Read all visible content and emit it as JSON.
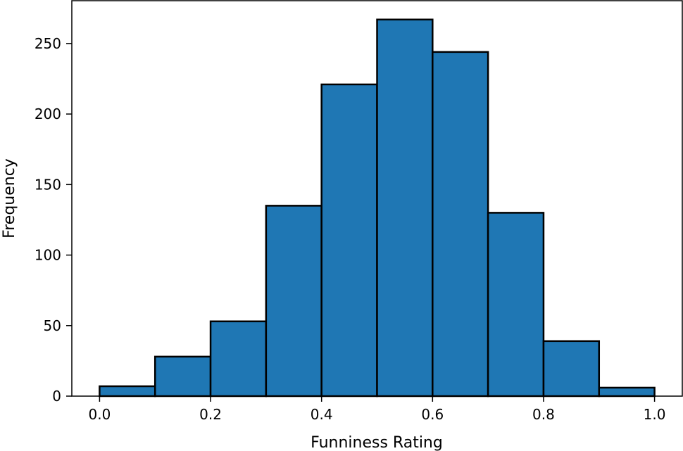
{
  "chart_data": {
    "type": "bar",
    "title": "",
    "xlabel": "Funniness Rating",
    "ylabel": "Frequency",
    "bins": [
      {
        "x0": 0.0,
        "x1": 0.1,
        "count": 7
      },
      {
        "x0": 0.1,
        "x1": 0.2,
        "count": 28
      },
      {
        "x0": 0.2,
        "x1": 0.3,
        "count": 53
      },
      {
        "x0": 0.3,
        "x1": 0.4,
        "count": 135
      },
      {
        "x0": 0.4,
        "x1": 0.5,
        "count": 221
      },
      {
        "x0": 0.5,
        "x1": 0.6,
        "count": 267
      },
      {
        "x0": 0.6,
        "x1": 0.7,
        "count": 244
      },
      {
        "x0": 0.7,
        "x1": 0.8,
        "count": 130
      },
      {
        "x0": 0.8,
        "x1": 0.9,
        "count": 39
      },
      {
        "x0": 0.9,
        "x1": 1.0,
        "count": 6
      }
    ],
    "xlim": [
      -0.05,
      1.05
    ],
    "ylim": [
      0,
      280.35
    ],
    "x_ticks": [
      "0.0",
      "0.2",
      "0.4",
      "0.6",
      "0.8",
      "1.0"
    ],
    "y_ticks": [
      "0",
      "50",
      "100",
      "150",
      "200",
      "250"
    ],
    "grid": false,
    "colors": {
      "bar_fill": "#1f77b4",
      "bar_edge": "#000000"
    }
  }
}
